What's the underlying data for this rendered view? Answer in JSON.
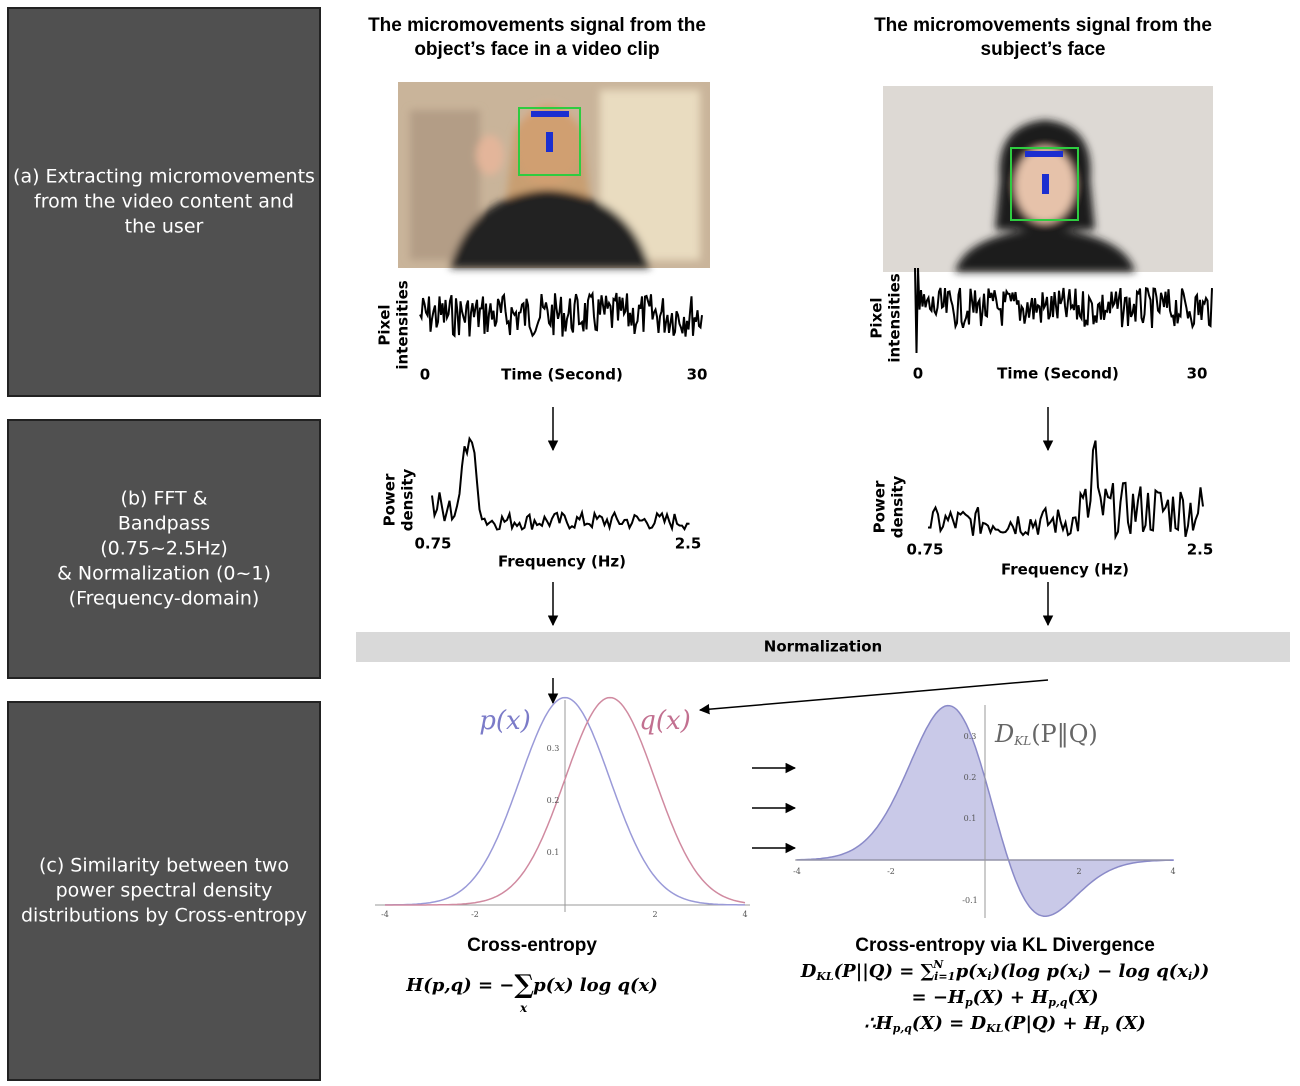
{
  "panels": [
    {
      "lines": [
        "(a) Extracting micromovements",
        "from the video content and",
        "the user"
      ]
    },
    {
      "lines": [
        "(b) FFT &",
        "Bandpass",
        "(0.75~2.5Hz)",
        "& Normalization (0~1)",
        "(Frequency-domain)"
      ]
    },
    {
      "lines": [
        "(c) Similarity between two",
        "power spectral density",
        "distributions by Cross-entropy"
      ]
    }
  ],
  "columns": [
    {
      "title_lines": [
        "The micromovements signal from the",
        "object’s face in a video clip"
      ],
      "signal": {
        "y_label_lines": [
          "Pixel",
          "intensities"
        ],
        "x_label": "Time (Second)",
        "x_start": "0",
        "x_end": "30"
      },
      "spectrum": {
        "y_label_lines": [
          "Power",
          "density"
        ],
        "x_label": "Frequency (Hz)",
        "x_start": "0.75",
        "x_end": "2.5"
      }
    },
    {
      "title_lines": [
        "The micromovements signal from the",
        "subject’s face"
      ],
      "signal": {
        "y_label_lines": [
          "Pixel",
          "intensities"
        ],
        "x_label": "Time (Second)",
        "x_start": "0",
        "x_end": "30"
      },
      "spectrum": {
        "y_label_lines": [
          "Power",
          "density"
        ],
        "x_label": "Frequency (Hz)",
        "x_start": "0.75",
        "x_end": "2.5"
      }
    }
  ],
  "normalization": "Normalization",
  "cross_entropy": {
    "p_label": "p(x)",
    "q_label": "q(x)",
    "x_ticks": [
      "-4",
      "-2",
      "2",
      "4"
    ],
    "y_ticks": [
      "0.1",
      "0.2",
      "0.3"
    ],
    "title": "Cross-entropy",
    "formula": [
      "H(p,q) = −",
      "∑",
      "x",
      "p(x) log q(x)"
    ]
  },
  "kl": {
    "label": [
      "D",
      "KL",
      "(P‖Q)"
    ],
    "x_ticks": [
      "-4",
      "-2",
      "2",
      "4"
    ],
    "y_ticks": [
      "0.1",
      "0.2",
      "0.3",
      "-0.1"
    ],
    "title": "Cross-entropy via KL Divergence",
    "line1": [
      "D",
      "KL",
      "(P||Q) = ",
      "∑",
      "i=1",
      "N",
      " p(x",
      "i",
      ")(log p(x",
      "i",
      ") − log q(x",
      "i",
      "))"
    ],
    "line2": [
      "= −H",
      "p",
      "(X) + H",
      "p,q",
      "(X)"
    ],
    "line3": [
      "∴H",
      "p,q",
      "(X) = D",
      "KL",
      "(P|Q) + H",
      "p",
      " (X)"
    ]
  }
}
